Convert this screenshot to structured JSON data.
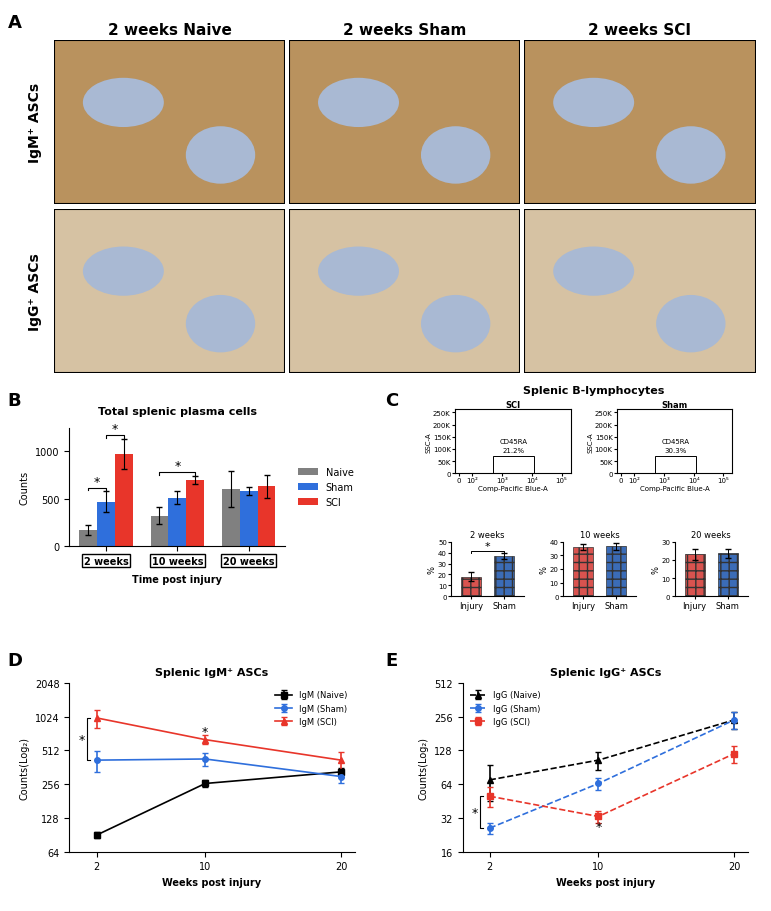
{
  "chart_data": [
    {
      "type": "image_grid",
      "label": "A",
      "columns": [
        "2 weeks Naive",
        "2 weeks Sham",
        "2 weeks SCI"
      ],
      "rows": [
        "IgM⁺ ASCs",
        "IgG⁺ ASCs"
      ]
    },
    {
      "type": "bar",
      "label": "B",
      "title": "Total splenic plasma cells",
      "x_label": "Time post injury",
      "y_label": "Counts",
      "categories": [
        "2 weeks",
        "10 weeks",
        "20 weeks"
      ],
      "series": [
        {
          "name": "Naive",
          "color": "#808080",
          "values": [
            170,
            320,
            600
          ],
          "errors": [
            50,
            90,
            190
          ]
        },
        {
          "name": "Sham",
          "color": "#2f6fdc",
          "values": [
            470,
            510,
            580
          ],
          "errors": [
            110,
            70,
            40
          ]
        },
        {
          "name": "SCI",
          "color": "#e8352a",
          "values": [
            970,
            700,
            630
          ],
          "errors": [
            160,
            40,
            120
          ]
        }
      ],
      "ylim": [
        0,
        1250
      ],
      "yticks": [
        0,
        500,
        1000
      ],
      "legend": "right",
      "significance": [
        {
          "category": "2 weeks",
          "between": [
            "Naive",
            "Sham"
          ],
          "label": "*"
        },
        {
          "category": "2 weeks",
          "between": [
            "Sham",
            "SCI"
          ],
          "label": "*"
        },
        {
          "category": "10 weeks",
          "between": [
            "Naive",
            "SCI"
          ],
          "label": "*"
        }
      ]
    },
    {
      "type": "scatter",
      "label": "C",
      "title": "Splenic B-lymphocytes",
      "x_label": "Comp-Pacific Blue-A",
      "y_label": "SSC-A",
      "xlim": [
        -30,
        200000
      ],
      "xticks": [
        0,
        {
          "value": 100,
          "label": "10²"
        },
        {
          "value": 1000,
          "label": "10³"
        },
        {
          "value": 10000,
          "label": "10⁴"
        },
        {
          "value": 100000,
          "label": "10⁵"
        }
      ],
      "ylim": [
        0,
        262144
      ],
      "yticks": [
        0,
        {
          "value": 50000,
          "label": "50K"
        },
        {
          "value": 100000,
          "label": "100K"
        },
        {
          "value": 150000,
          "label": "150K"
        },
        {
          "value": 200000,
          "label": "200K"
        },
        {
          "value": 250000,
          "label": "250K"
        }
      ],
      "plots": [
        {
          "title": "SCI",
          "gate_name": "CD45RA",
          "gate_label": "21.2%",
          "gate": {
            "x": [
              500,
              12000
            ],
            "y": [
              0,
              70000
            ]
          }
        },
        {
          "title": "Sham",
          "gate_name": "CD45RA",
          "gate_label": "30.3%",
          "gate": {
            "x": [
              500,
              12000
            ],
            "y": [
              0,
              70000
            ]
          }
        }
      ]
    },
    {
      "type": "bar",
      "title": "2 weeks",
      "y_label": "%",
      "categories": [
        "Injury",
        "Sham"
      ],
      "values": [
        18,
        37
      ],
      "errors": [
        4,
        3
      ],
      "colors": [
        "#d9534f",
        "#3b6cb7"
      ],
      "ylim": [
        0,
        50
      ],
      "yticks": [
        0,
        10,
        20,
        30,
        40,
        50
      ],
      "significance": [
        {
          "between": [
            "Injury",
            "Sham"
          ],
          "label": "*"
        }
      ]
    },
    {
      "type": "bar",
      "title": "10 weeks",
      "y_label": "%",
      "categories": [
        "Injury",
        "Sham"
      ],
      "values": [
        36,
        36.5
      ],
      "errors": [
        2,
        2.5
      ],
      "colors": [
        "#d9534f",
        "#3b6cb7"
      ],
      "ylim": [
        0,
        40
      ],
      "yticks": [
        0,
        10,
        20,
        30,
        40
      ],
      "significance": []
    },
    {
      "type": "bar",
      "title": "20 weeks",
      "y_label": "%",
      "categories": [
        "Injury",
        "Sham"
      ],
      "values": [
        23,
        23.5
      ],
      "errors": [
        3,
        2.5
      ],
      "colors": [
        "#d9534f",
        "#3b6cb7"
      ],
      "ylim": [
        0,
        30
      ],
      "yticks": [
        0,
        10,
        20,
        30
      ],
      "significance": []
    },
    {
      "type": "line",
      "label": "D",
      "title": "Splenic IgM⁺ ASCs",
      "x_label": "Weeks post injury",
      "y_label": "Counts(Log₂)",
      "log": "y",
      "x": [
        2,
        10,
        20
      ],
      "xlim": [
        0,
        21
      ],
      "xticks": [
        2,
        10,
        20
      ],
      "ylim": [
        64,
        2048
      ],
      "yticks": [
        64,
        128,
        256,
        512,
        1024,
        2048
      ],
      "series": [
        {
          "name": "IgM (Naive)",
          "color": "#000000",
          "line_style": "solid",
          "marker": "square",
          "values": [
            90,
            260,
            330
          ],
          "errors": [
            5,
            20,
            30
          ]
        },
        {
          "name": "IgM (Sham)",
          "color": "#2f6fdc",
          "line_style": "solid",
          "marker": "circle",
          "values": [
            420,
            430,
            300
          ],
          "errors": [
            90,
            60,
            40
          ]
        },
        {
          "name": "IgM (SCI)",
          "color": "#e8352a",
          "line_style": "solid",
          "marker": "triangle",
          "values": [
            1000,
            640,
            420
          ],
          "errors": [
            180,
            60,
            80
          ]
        }
      ],
      "legend": "upper right",
      "significance": [
        {
          "x": 2,
          "between": [
            "IgM (Sham)",
            "IgM (SCI)"
          ],
          "label": "*"
        },
        {
          "x": 10,
          "y": 760,
          "label": "*"
        }
      ]
    },
    {
      "type": "line",
      "label": "E",
      "title": "Splenic IgG⁺ ASCs",
      "x_label": "Weeks post injury",
      "y_label": "Counts(Log₂)",
      "log": "y",
      "x": [
        2,
        10,
        20
      ],
      "xlim": [
        0,
        21
      ],
      "xticks": [
        2,
        10,
        20
      ],
      "ylim": [
        16,
        512
      ],
      "yticks": [
        16,
        32,
        64,
        128,
        256,
        512
      ],
      "series": [
        {
          "name": "IgG (Naive)",
          "color": "#000000",
          "line_style": "dashed",
          "marker": "triangle",
          "values": [
            70,
            105,
            240
          ],
          "errors": [
            25,
            20,
            40
          ]
        },
        {
          "name": "IgG (Sham)",
          "color": "#2f6fdc",
          "line_style": "dashed",
          "marker": "circle",
          "values": [
            26,
            65,
            240
          ],
          "errors": [
            3,
            8,
            40
          ]
        },
        {
          "name": "IgG (SCI)",
          "color": "#e8352a",
          "line_style": "dashed",
          "marker": "square",
          "values": [
            50,
            33,
            120
          ],
          "errors": [
            10,
            4,
            20
          ]
        }
      ],
      "legend": "upper left",
      "significance": [
        {
          "x": 2,
          "between": [
            "IgG (Sham)",
            "IgG (SCI)"
          ],
          "label": "*"
        },
        {
          "x": 10,
          "y": 27,
          "label": "*"
        }
      ]
    }
  ]
}
